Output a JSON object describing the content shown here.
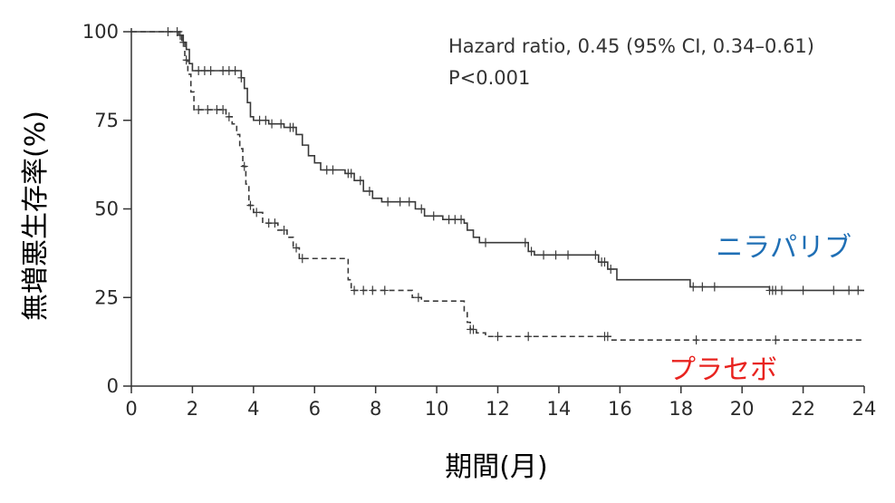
{
  "chart_data": {
    "type": "line",
    "subtype": "kaplan-meier-step",
    "title": "",
    "xlabel": "期間(月)",
    "ylabel": "無増悪生存率(%)",
    "xlim": [
      0,
      24
    ],
    "ylim": [
      0,
      100
    ],
    "xticks": [
      "0",
      "2",
      "4",
      "6",
      "8",
      "10",
      "12",
      "14",
      "16",
      "18",
      "20",
      "22",
      "24"
    ],
    "yticks": [
      "0",
      "25",
      "50",
      "75",
      "100"
    ],
    "grid": false,
    "annotations": [
      "Hazard ratio, 0.45 (95% CI, 0.34–0.61)",
      "P<0.001"
    ],
    "series": [
      {
        "name": "ニラパリブ",
        "color": "#1f6fb5",
        "line_style": "solid",
        "points": [
          [
            0,
            100
          ],
          [
            1.4,
            100
          ],
          [
            1.55,
            99
          ],
          [
            1.7,
            97
          ],
          [
            1.8,
            95
          ],
          [
            1.9,
            91
          ],
          [
            2.0,
            89
          ],
          [
            3.5,
            89
          ],
          [
            3.6,
            87
          ],
          [
            3.7,
            84
          ],
          [
            3.8,
            80
          ],
          [
            3.9,
            76
          ],
          [
            4.0,
            75
          ],
          [
            4.5,
            74
          ],
          [
            5.0,
            73
          ],
          [
            5.4,
            71
          ],
          [
            5.6,
            68
          ],
          [
            5.8,
            65
          ],
          [
            6.0,
            63
          ],
          [
            6.2,
            61
          ],
          [
            7.0,
            60
          ],
          [
            7.3,
            58
          ],
          [
            7.6,
            55
          ],
          [
            7.9,
            53
          ],
          [
            8.2,
            52
          ],
          [
            9.0,
            52
          ],
          [
            9.3,
            50
          ],
          [
            9.6,
            48
          ],
          [
            10.2,
            47
          ],
          [
            10.9,
            46
          ],
          [
            11.0,
            44
          ],
          [
            11.2,
            42
          ],
          [
            11.4,
            40.5
          ],
          [
            12.8,
            40.5
          ],
          [
            13.0,
            38
          ],
          [
            13.2,
            37
          ],
          [
            15.0,
            37
          ],
          [
            15.3,
            35
          ],
          [
            15.6,
            33
          ],
          [
            15.9,
            30
          ],
          [
            18.2,
            30
          ],
          [
            18.3,
            28
          ],
          [
            20.8,
            28
          ],
          [
            20.9,
            27
          ],
          [
            24,
            27
          ]
        ],
        "censor_x": [
          1.2,
          1.5,
          1.6,
          1.7,
          2.2,
          2.4,
          2.6,
          3.0,
          3.2,
          3.4,
          3.6,
          4.2,
          4.4,
          4.6,
          4.9,
          5.2,
          5.3,
          6.4,
          6.6,
          7.1,
          7.2,
          7.5,
          7.8,
          8.4,
          8.8,
          9.1,
          9.5,
          9.9,
          10.4,
          10.6,
          10.8,
          11.6,
          12.9,
          13.1,
          13.5,
          13.9,
          14.3,
          15.2,
          15.4,
          15.5,
          15.7,
          18.4,
          18.7,
          19.1,
          20.9,
          21.0,
          21.1,
          21.3,
          22.0,
          23.0,
          23.5,
          23.8
        ],
        "label_pos": "right-middle"
      },
      {
        "name": "プラセボ",
        "color": "#e8231f",
        "line_style": "dashed",
        "points": [
          [
            0,
            100
          ],
          [
            1.55,
            100
          ],
          [
            1.65,
            97
          ],
          [
            1.75,
            92
          ],
          [
            1.85,
            88
          ],
          [
            1.95,
            83
          ],
          [
            2.05,
            78
          ],
          [
            2.6,
            78
          ],
          [
            3.1,
            76
          ],
          [
            3.3,
            74
          ],
          [
            3.45,
            71
          ],
          [
            3.55,
            67
          ],
          [
            3.65,
            62
          ],
          [
            3.75,
            57
          ],
          [
            3.85,
            51
          ],
          [
            4.0,
            49
          ],
          [
            4.3,
            46
          ],
          [
            4.8,
            44
          ],
          [
            5.1,
            42
          ],
          [
            5.3,
            39
          ],
          [
            5.5,
            36
          ],
          [
            7.0,
            36
          ],
          [
            7.1,
            30
          ],
          [
            7.2,
            27
          ],
          [
            9.0,
            27
          ],
          [
            9.2,
            25
          ],
          [
            9.5,
            24
          ],
          [
            10.8,
            24
          ],
          [
            10.9,
            21
          ],
          [
            11.0,
            18
          ],
          [
            11.1,
            16
          ],
          [
            11.3,
            15
          ],
          [
            11.6,
            14
          ],
          [
            15.6,
            14
          ],
          [
            15.7,
            13
          ],
          [
            24,
            13
          ]
        ],
        "censor_x": [
          1.8,
          2.2,
          2.5,
          2.8,
          3.0,
          3.2,
          3.7,
          3.9,
          4.1,
          4.5,
          4.7,
          5.0,
          5.4,
          5.6,
          7.3,
          7.6,
          7.9,
          8.3,
          9.4,
          11.1,
          11.2,
          12.0,
          13.0,
          15.5,
          15.6,
          18.5,
          21.1
        ],
        "label_pos": "right-bottom"
      }
    ]
  }
}
